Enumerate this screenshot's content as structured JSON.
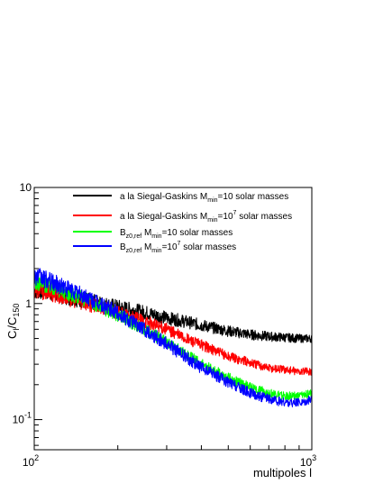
{
  "chart_data": {
    "type": "line",
    "title": "",
    "xlabel": "multipoles l",
    "ylabel": {
      "main": "C",
      "sub1": "l",
      "mid": "/C",
      "sub2": "150"
    },
    "xscale": "log",
    "yscale": "log",
    "xlim": [
      100,
      1000
    ],
    "ylim": [
      0.055,
      10
    ],
    "grid": false,
    "legend_position": "top-right",
    "x_ticks": [
      {
        "value": 100,
        "base": "10",
        "exp": "2"
      },
      {
        "value": 1000,
        "base": "10",
        "exp": "3"
      }
    ],
    "y_ticks": [
      {
        "value": 0.1,
        "base": "10",
        "exp": "-1"
      },
      {
        "value": 1,
        "base": "1",
        "exp": ""
      },
      {
        "value": 10,
        "base": "10",
        "exp": ""
      }
    ],
    "x": [
      100,
      110,
      125,
      150,
      200,
      250,
      300,
      350,
      400,
      500,
      600,
      700,
      800,
      900,
      1000
    ],
    "series": [
      {
        "legend": {
          "pre": "a la Siegal-Gaskins M",
          "sub": "min",
          "mid": "=10",
          "sup": "",
          "post": " solar masses"
        },
        "color": "#000000",
        "noise": 0.05,
        "values": [
          1.3,
          1.3,
          1.18,
          1.07,
          0.93,
          0.84,
          0.75,
          0.7,
          0.65,
          0.58,
          0.54,
          0.52,
          0.51,
          0.5,
          0.5
        ]
      },
      {
        "legend": {
          "pre": "a la Siegal-Gaskins M",
          "sub": "min",
          "mid": "=10",
          "sup": "7",
          "post": " solar masses"
        },
        "color": "#ff0000",
        "noise": 0.045,
        "values": [
          1.3,
          1.25,
          1.15,
          1.02,
          0.83,
          0.7,
          0.6,
          0.5,
          0.44,
          0.35,
          0.31,
          0.28,
          0.27,
          0.26,
          0.26
        ]
      },
      {
        "legend": {
          "pre": "B",
          "sub": "z0,ref",
          "mid": " M",
          "sub2": "min",
          "mid2": "=10",
          "sup": "",
          "post": " solar masses"
        },
        "color": "#00ff00",
        "noise": 0.045,
        "values": [
          1.55,
          1.45,
          1.3,
          1.1,
          0.8,
          0.6,
          0.46,
          0.37,
          0.3,
          0.23,
          0.19,
          0.17,
          0.16,
          0.16,
          0.17
        ]
      },
      {
        "legend": {
          "pre": "B",
          "sub": "z0,ref",
          "mid": " M",
          "sub2": "min",
          "mid2": "=10",
          "sup": "7",
          "post": " solar masses"
        },
        "color": "#0000ff",
        "noise": 0.05,
        "values": [
          1.75,
          1.6,
          1.42,
          1.17,
          0.83,
          0.6,
          0.45,
          0.35,
          0.28,
          0.21,
          0.17,
          0.15,
          0.14,
          0.14,
          0.15
        ]
      }
    ]
  }
}
